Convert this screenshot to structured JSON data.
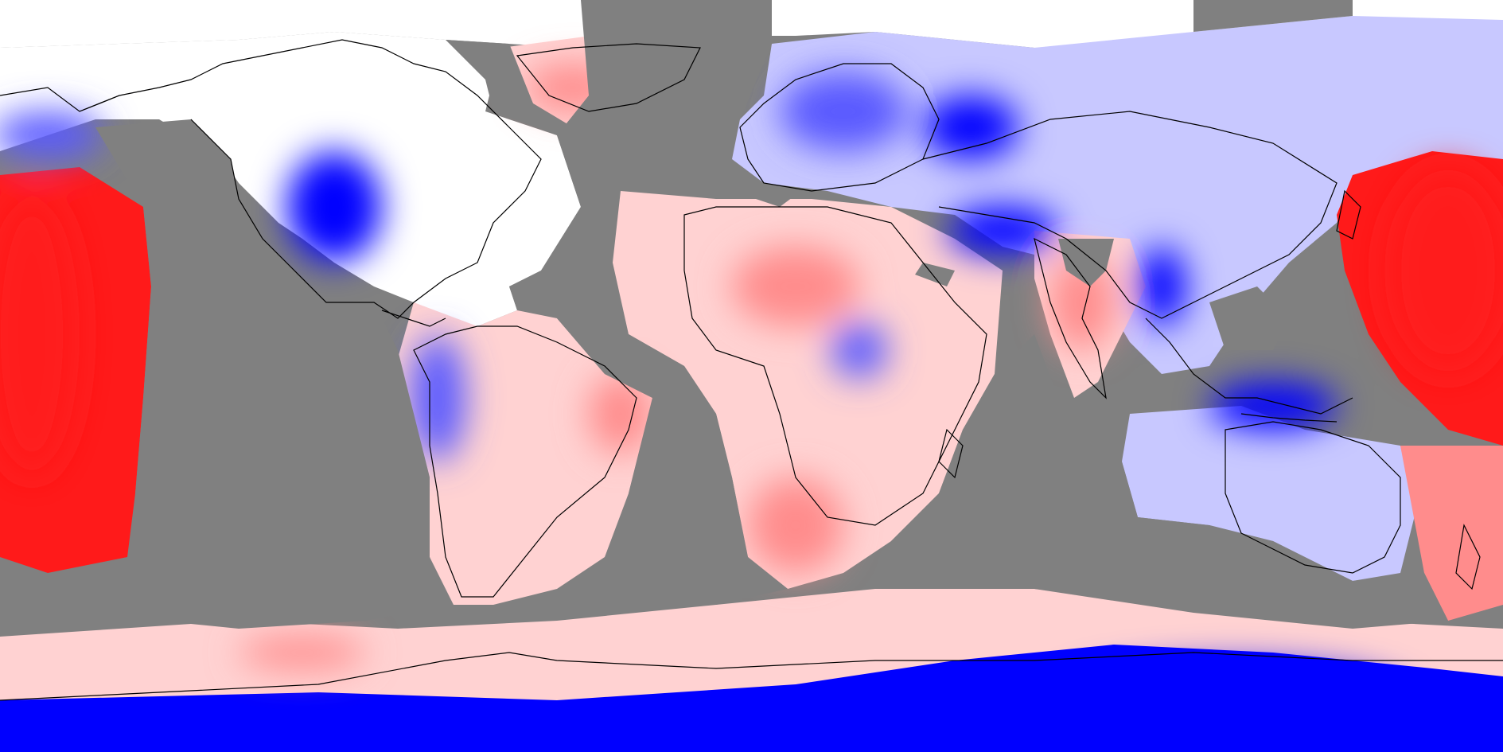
{
  "map": {
    "projection": "equirectangular",
    "extent": {
      "lon": [
        -180,
        180
      ],
      "lat": [
        -90,
        90
      ]
    },
    "colors": {
      "missing_data": "#808080",
      "coastline": "#000000",
      "scale_negative_strong": "#0000ff",
      "scale_negative_medium": "#5a5aff",
      "scale_negative_light": "#c8c8ff",
      "scale_neutral": "#ffffff",
      "scale_positive_light": "#ffd2d2",
      "scale_positive_medium": "#ff8c8c",
      "scale_positive_strong": "#ff1a1a"
    },
    "legend": "none",
    "title": ""
  }
}
